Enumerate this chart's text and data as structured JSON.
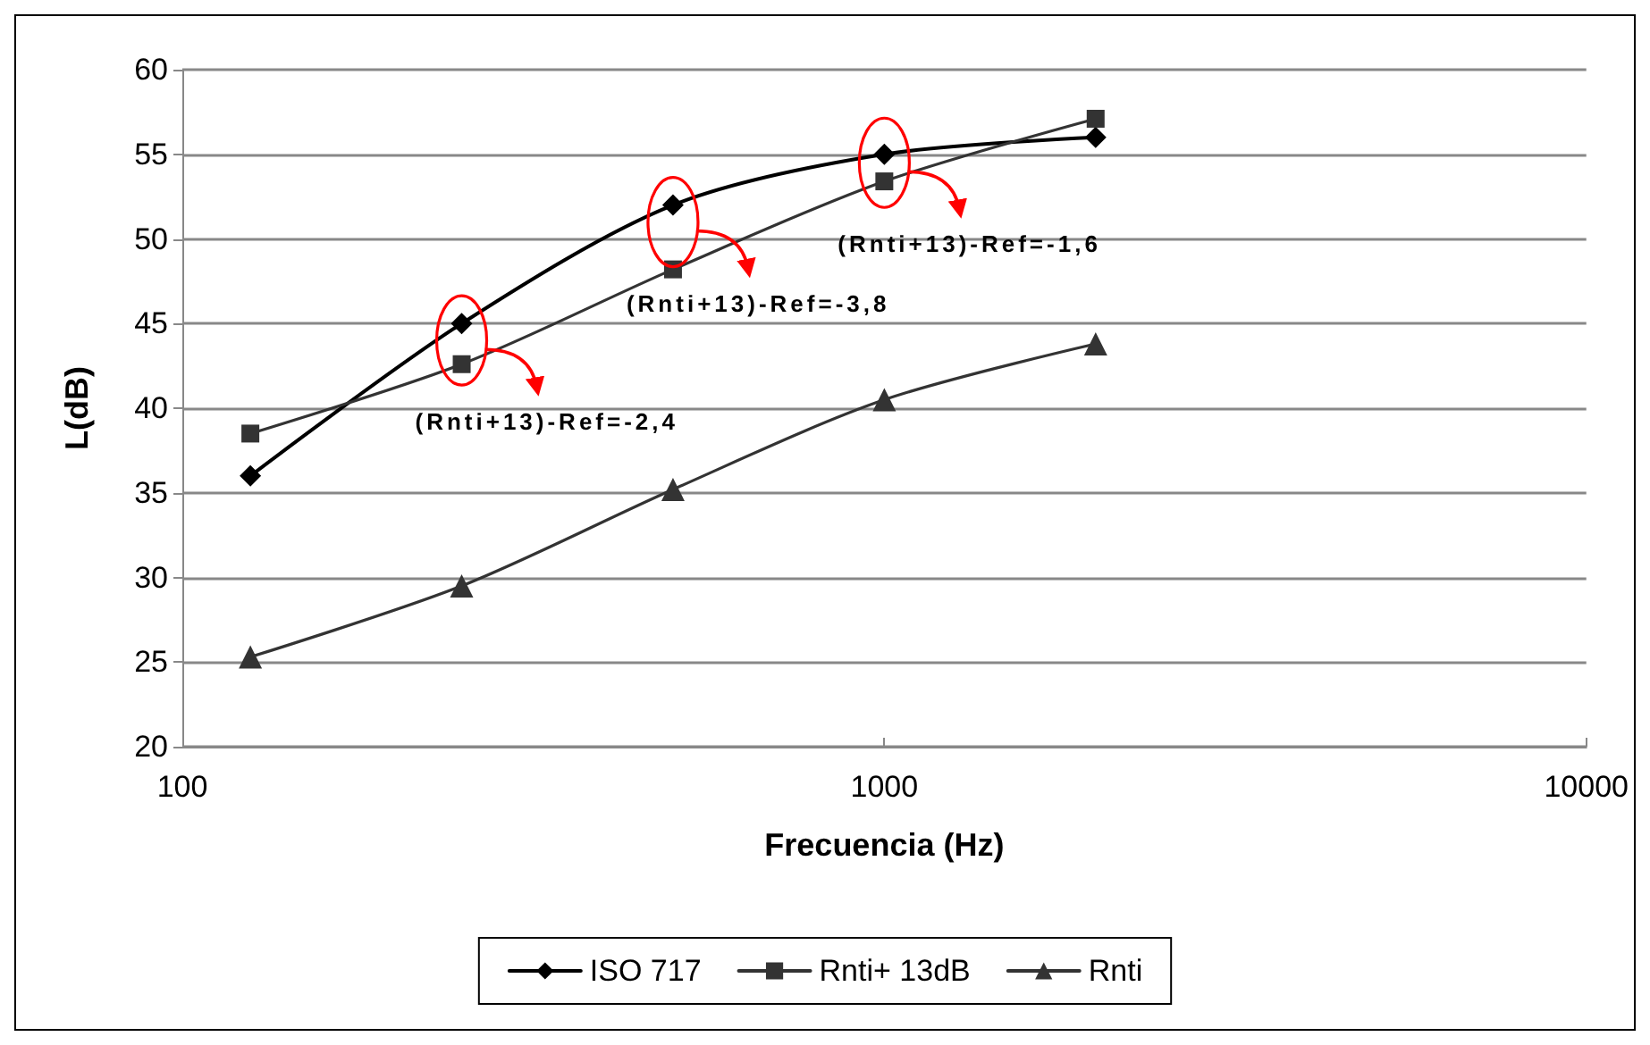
{
  "chart_data": {
    "type": "line",
    "xlabel": "Frecuencia (Hz)",
    "ylabel": "L(dB)",
    "x": [
      125,
      250,
      500,
      1000,
      2000
    ],
    "series": [
      {
        "name": "ISO 717",
        "color": "#000000",
        "marker": "diamond",
        "values": [
          36,
          45,
          52,
          55,
          56
        ]
      },
      {
        "name": "Rnti+ 13dB",
        "color": "#333333",
        "marker": "square",
        "values": [
          38.5,
          42.6,
          48.2,
          53.4,
          57.1
        ]
      },
      {
        "name": "Rnti",
        "color": "#333333",
        "marker": "triangle",
        "values": [
          25.3,
          29.5,
          35.2,
          40.5,
          43.8
        ]
      }
    ],
    "log": "x",
    "xlim": [
      100,
      10000
    ],
    "xticks": [
      100,
      1000,
      10000
    ],
    "ylim": [
      20,
      60
    ],
    "yticks": [
      20,
      25,
      30,
      35,
      40,
      45,
      50,
      55,
      60
    ],
    "grid": "y",
    "legend": "bottom",
    "line_style": "solid",
    "annotations": [
      {
        "text": "(Rnti+13)-Ref=-2,4",
        "x": 250,
        "y": 44
      },
      {
        "text": "(Rnti+13)-Ref=-3,8",
        "x": 500,
        "y": 51
      },
      {
        "text": "(Rnti+13)-Ref=-1,6",
        "x": 1000,
        "y": 54.5
      }
    ]
  }
}
